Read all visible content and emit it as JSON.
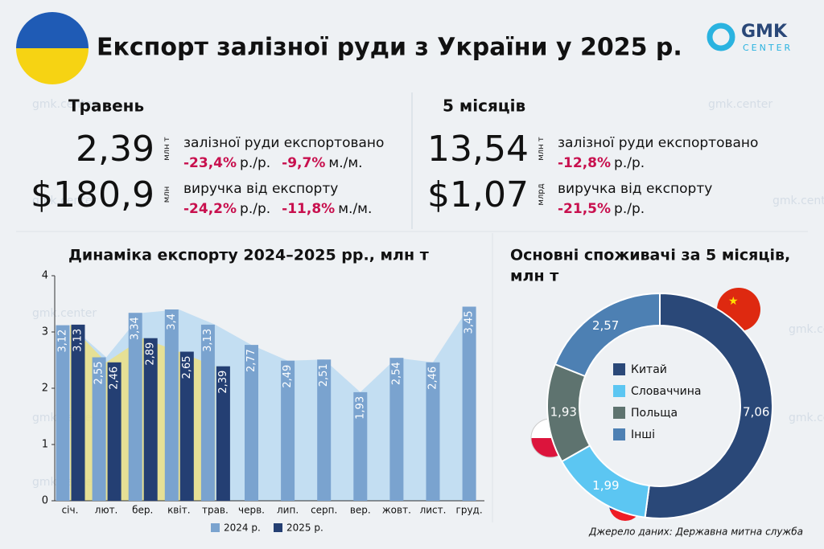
{
  "header": {
    "title": "Експорт залізної руди з України у 2025 р.",
    "logo": [
      "GMK",
      "CENTER"
    ],
    "watermark": "gmk.center"
  },
  "stats": [
    {
      "period": "Травень",
      "rows": [
        {
          "value": "2,39",
          "unit": "млн т",
          "label": "залізної руди експортовано",
          "changes": [
            {
              "value": "-23,4%",
              "unit": "р./р."
            },
            {
              "value": "-9,7%",
              "unit": "м./м."
            }
          ]
        },
        {
          "value": "$180,9",
          "unit": "млн",
          "label": "виручка від експорту",
          "changes": [
            {
              "value": "-24,2%",
              "unit": "р./р."
            },
            {
              "value": "-11,8%",
              "unit": "м./м."
            }
          ]
        }
      ]
    },
    {
      "period": "5 місяців",
      "rows": [
        {
          "value": "13,54",
          "unit": "млн т",
          "label": "залізної руди експортовано",
          "changes": [
            {
              "value": "-12,8%",
              "unit": "р./р."
            }
          ]
        },
        {
          "value": "$1,07",
          "unit": "млрд",
          "label": "виручка від експорту",
          "changes": [
            {
              "value": "-21,5%",
              "unit": "р./р."
            }
          ]
        }
      ]
    }
  ],
  "chart_data": [
    {
      "type": "bar",
      "title": "Динаміка експорту 2024–2025 рр., млн т",
      "categories": [
        "січ.",
        "лют.",
        "бер.",
        "квіт.",
        "трав.",
        "черв.",
        "лип.",
        "серп.",
        "вер.",
        "жовт.",
        "лист.",
        "груд."
      ],
      "series": [
        {
          "name": "2024 р.",
          "color": "#7aa3cf",
          "values": [
            3.12,
            2.55,
            3.34,
            3.4,
            3.13,
            2.77,
            2.49,
            2.51,
            1.93,
            2.54,
            2.46,
            3.45
          ],
          "value_labels": [
            "3,12",
            "2,55",
            "3,34",
            "3,4",
            "3,13",
            "2,77",
            "2,49",
            "2,51",
            "1,93",
            "2,54",
            "2,46",
            "3,45"
          ]
        },
        {
          "name": "2025 р.",
          "color": "#243f73",
          "values": [
            3.13,
            2.46,
            2.89,
            2.65,
            2.39,
            null,
            null,
            null,
            null,
            null,
            null,
            null
          ],
          "value_labels": [
            "3,13",
            "2,46",
            "2,89",
            "2,65",
            "2,39",
            null,
            null,
            null,
            null,
            null,
            null,
            null
          ]
        }
      ],
      "ylim": [
        0,
        4
      ],
      "yticks": [
        0,
        1,
        2,
        3,
        4
      ]
    },
    {
      "type": "pie",
      "title": [
        "Основні споживачі за 5 місяців,",
        "млн т"
      ],
      "categories": [
        "Китай",
        "Словаччина",
        "Польща",
        "Інші"
      ],
      "values": [
        7.06,
        1.99,
        1.93,
        2.57
      ],
      "value_labels": [
        "7,06",
        "1,99",
        "1,93",
        "2,57"
      ],
      "colors": [
        "#2a4878",
        "#5cc6f2",
        "#5e736f",
        "#4d80b3"
      ],
      "source": "Джерело даних: Державна митна служба"
    }
  ]
}
